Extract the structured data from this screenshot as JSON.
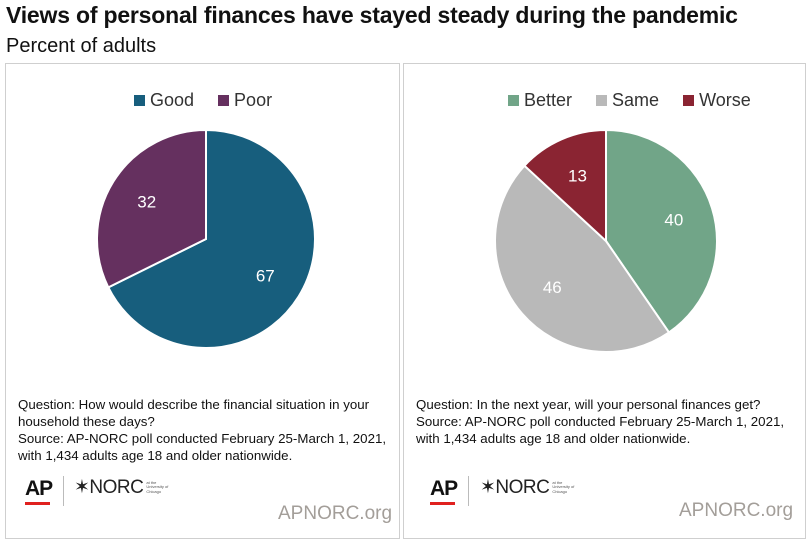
{
  "title": "Views of personal finances have stayed steady during the pandemic",
  "subtitle": "Percent of adults",
  "chart_data": [
    {
      "type": "pie",
      "categories": [
        "Good",
        "Poor"
      ],
      "values": [
        67,
        32
      ],
      "colors": [
        "#175e7d",
        "#65305f"
      ],
      "legend_position": "top",
      "question": "Question: How would describe the financial situation in your household these days?",
      "source": "Source: AP-NORC poll conducted February 25-March 1, 2021, with 1,434 adults age 18 and older nationwide."
    },
    {
      "type": "pie",
      "categories": [
        "Better",
        "Same",
        "Worse"
      ],
      "values": [
        40,
        46,
        13
      ],
      "colors": [
        "#71a588",
        "#b9b9b9",
        "#8a2432"
      ],
      "legend_position": "top",
      "question": "Question: In the next year, will your personal finances get?",
      "source": "Source: AP-NORC poll conducted February 25-March 1, 2021, with 1,434 adults age 18 and older nationwide."
    }
  ],
  "branding": {
    "ap": "AP",
    "norc": "NORC",
    "norc_star": "✶",
    "norc_affiliation": "at the University of Chicago",
    "site": "APNORC.org"
  }
}
